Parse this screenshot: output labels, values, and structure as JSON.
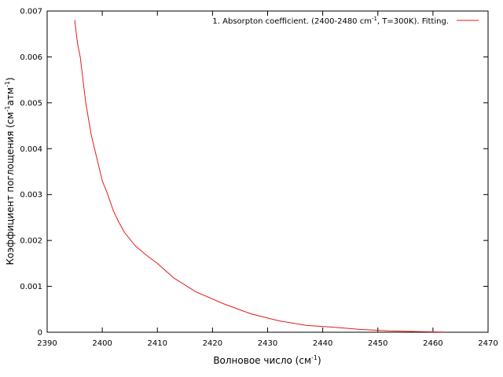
{
  "chart_data": {
    "type": "line",
    "xlabel": "Волновое число (см",
    "xlabel_sup": "-1",
    "xlabel_end": ")",
    "ylabel": "Коэффициент поглощения (см",
    "ylabel_sup1": "-1",
    "ylabel_mid": "атм",
    "ylabel_sup2": "-1",
    "ylabel_end": ")",
    "xlim": [
      2390,
      2470
    ],
    "ylim": [
      0,
      0.007
    ],
    "x_ticks": [
      2390,
      2400,
      2410,
      2420,
      2430,
      2440,
      2450,
      2460,
      2470
    ],
    "y_ticks": [
      0,
      0.001,
      0.002,
      0.003,
      0.004,
      0.005,
      0.006,
      0.007
    ],
    "y_tick_labels": [
      "0",
      "0.001",
      "0.002",
      "0.003",
      "0.004",
      "0.005",
      "0.006",
      "0.007"
    ],
    "grid": false,
    "legend_position": "top-right",
    "series": [
      {
        "name": "1. Absorpton coefficient. (2400-2480 cm",
        "name_sup": "-1",
        "name_end": ", T=300K). Fitting.",
        "color": "#e41a1c",
        "x": [
          2395,
          2395.5,
          2396,
          2396.5,
          2397,
          2398,
          2399,
          2400,
          2401,
          2402,
          2403,
          2404,
          2406,
          2408,
          2410,
          2413,
          2417,
          2422,
          2427,
          2432,
          2437,
          2442,
          2447,
          2452,
          2457,
          2460,
          2462
        ],
        "y": [
          0.0068,
          0.0063,
          0.006,
          0.0055,
          0.005,
          0.0043,
          0.0038,
          0.0033,
          0.003,
          0.00265,
          0.0024,
          0.00218,
          0.00188,
          0.00168,
          0.0015,
          0.00118,
          0.00088,
          0.00062,
          0.0004,
          0.00025,
          0.00015,
          0.00011,
          6e-05,
          3e-05,
          1.5e-05,
          8e-06,
          5e-06
        ]
      }
    ]
  }
}
